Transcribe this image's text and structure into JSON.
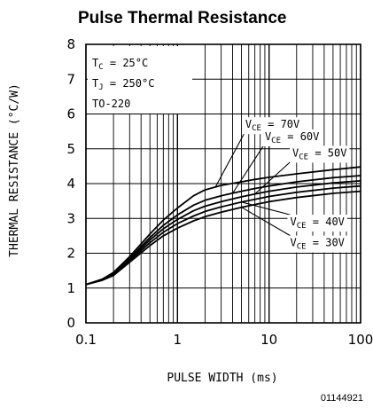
{
  "chart_data": {
    "type": "line",
    "title": "Pulse Thermal Resistance",
    "xlabel": "PULSE WIDTH (ms)",
    "ylabel": "THERMAL RESISTANCE (°C/W)",
    "x_scale": "log",
    "xlim": [
      0.1,
      100
    ],
    "ylim": [
      0,
      8
    ],
    "x_ticks": [
      "0.1",
      "1",
      "10",
      "100"
    ],
    "y_ticks": [
      "0",
      "1",
      "2",
      "3",
      "4",
      "5",
      "6",
      "7",
      "8"
    ],
    "grid": true,
    "conditions": [
      "T_C = 25°C",
      "T_J = 250°C",
      "TO-220"
    ],
    "figure_id": "01144921",
    "series": [
      {
        "name": "V_CE = 70V",
        "x": [
          0.1,
          0.15,
          0.2,
          0.3,
          0.5,
          0.7,
          1,
          1.5,
          2,
          3,
          5,
          7,
          10,
          20,
          50,
          100
        ],
        "y": [
          1.1,
          1.25,
          1.45,
          1.9,
          2.55,
          2.95,
          3.3,
          3.65,
          3.82,
          3.95,
          4.05,
          4.12,
          4.18,
          4.28,
          4.4,
          4.48
        ]
      },
      {
        "name": "V_CE = 60V",
        "x": [
          0.1,
          0.15,
          0.2,
          0.3,
          0.5,
          0.7,
          1,
          1.5,
          2,
          3,
          5,
          7,
          10,
          20,
          50,
          100
        ],
        "y": [
          1.1,
          1.25,
          1.42,
          1.85,
          2.45,
          2.8,
          3.1,
          3.38,
          3.52,
          3.65,
          3.78,
          3.86,
          3.93,
          4.05,
          4.17,
          4.23
        ]
      },
      {
        "name": "V_CE = 50V",
        "x": [
          0.1,
          0.15,
          0.2,
          0.3,
          0.5,
          0.7,
          1,
          1.5,
          2,
          3,
          5,
          7,
          10,
          20,
          50,
          100
        ],
        "y": [
          1.1,
          1.24,
          1.4,
          1.82,
          2.38,
          2.7,
          2.97,
          3.22,
          3.35,
          3.48,
          3.62,
          3.7,
          3.78,
          3.9,
          4.02,
          4.08
        ]
      },
      {
        "name": "V_CE = 40V",
        "x": [
          0.1,
          0.15,
          0.2,
          0.3,
          0.5,
          0.7,
          1,
          1.5,
          2,
          3,
          5,
          7,
          10,
          20,
          50,
          100
        ],
        "y": [
          1.1,
          1.23,
          1.38,
          1.78,
          2.3,
          2.6,
          2.85,
          3.07,
          3.2,
          3.33,
          3.47,
          3.55,
          3.63,
          3.75,
          3.87,
          3.93
        ]
      },
      {
        "name": "V_CE = 30V",
        "x": [
          0.1,
          0.15,
          0.2,
          0.3,
          0.5,
          0.7,
          1,
          1.5,
          2,
          3,
          5,
          7,
          10,
          20,
          50,
          100
        ],
        "y": [
          1.1,
          1.22,
          1.36,
          1.74,
          2.22,
          2.5,
          2.72,
          2.93,
          3.05,
          3.18,
          3.32,
          3.4,
          3.48,
          3.6,
          3.72,
          3.78
        ]
      }
    ]
  }
}
